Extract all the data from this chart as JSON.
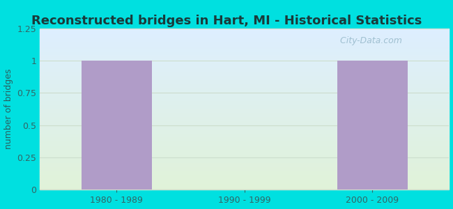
{
  "title": "Reconstructed bridges in Hart, MI - Historical Statistics",
  "categories": [
    "1980 - 1989",
    "1990 - 1999",
    "2000 - 2009"
  ],
  "values": [
    1,
    0,
    1
  ],
  "bar_color": "#b09cc8",
  "bar_width": 0.55,
  "ylabel": "number of bridges",
  "ylim": [
    0,
    1.25
  ],
  "yticks": [
    0,
    0.25,
    0.5,
    0.75,
    1,
    1.25
  ],
  "outer_bg": "#00e0e0",
  "title_color": "#1a3a3a",
  "axis_label_color": "#2a6060",
  "tick_color": "#336666",
  "watermark_text": "  City-Data.com",
  "watermark_color": "#99bbcc",
  "grid_color": "#ccddcc",
  "title_fontsize": 13,
  "ylabel_fontsize": 9,
  "bg_top_color": "#ddeeff",
  "bg_bottom_color": "#e8f5e0"
}
